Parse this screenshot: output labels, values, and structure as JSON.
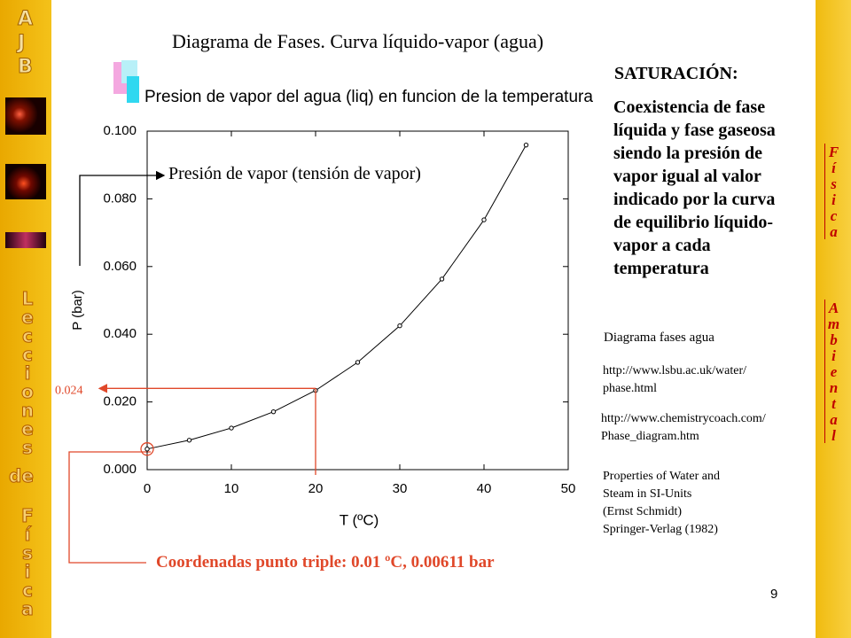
{
  "slide": {
    "title": "Diagrama de Fases. Curva líquido-vapor (agua)",
    "heading": "SATURACIÓN:",
    "paragraph": [
      "Coexistencia de fase",
      "líquida y fase gaseosa",
      "siendo la presión de",
      "vapor igual al valor",
      "indicado por la curva",
      "de equilibrio líquido-",
      "vapor a cada",
      "temperatura"
    ],
    "links_title": "Diagrama  fases agua",
    "link1": [
      "http://www.lsbu.ac.uk/water/",
      "phase.html"
    ],
    "link2": [
      "http://www.chemistrycoach.com/",
      "Phase_diagram.htm"
    ],
    "reference": [
      "Properties of Water and",
      "Steam in SI-Units",
      "(Ernst Schmidt)",
      "Springer-Verlag (1982)"
    ],
    "curve_note": "Presión de vapor (tensión de vapor)",
    "triple_point": "Coordenadas punto triple: 0.01 ºC, 0.00611 bar",
    "page_number": "9",
    "logo": [
      "A",
      "J",
      "B"
    ],
    "sidebar_words": [
      "Lecciones",
      "de",
      "Física"
    ],
    "right_words": [
      "Física",
      "Ambiental"
    ]
  },
  "chart_data": {
    "type": "line",
    "title": "Presion de vapor del agua (liq) en funcion de la temperatura",
    "x_label": "T (ºC)",
    "y_label": "P (bar)",
    "x": [
      0,
      5,
      10,
      15,
      20,
      25,
      30,
      35,
      40,
      45
    ],
    "series": [
      {
        "color": "#000000",
        "values": [
          0.0061,
          0.0087,
          0.0123,
          0.0171,
          0.0234,
          0.0317,
          0.0425,
          0.0563,
          0.0738,
          0.0959
        ]
      }
    ],
    "xlim": [
      0,
      50
    ],
    "ylim": [
      0,
      0.1
    ],
    "xticks": [
      0,
      10,
      20,
      30,
      40,
      50
    ],
    "yticks": [
      {
        "value": 0,
        "label": "0.000"
      },
      {
        "value": 0.02,
        "label": "0.020"
      },
      {
        "value": 0.04,
        "label": "0.040"
      },
      {
        "value": 0.06,
        "label": "0.060"
      },
      {
        "value": 0.08,
        "label": "0.080"
      },
      {
        "value": 0.1,
        "label": "0.100"
      }
    ],
    "reference_value": 0.024,
    "reference_color": "#e0482a"
  }
}
